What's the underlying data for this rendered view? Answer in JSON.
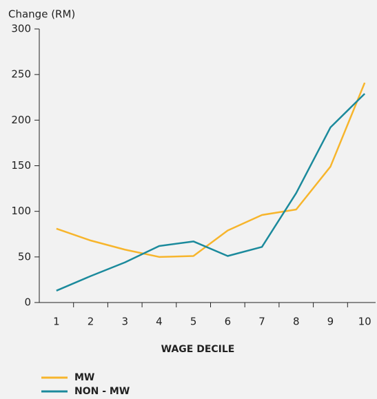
{
  "chart_data": {
    "type": "line",
    "y_label": "Change (RM)",
    "x_label": "WAGE DECILE",
    "categories": [
      "1",
      "2",
      "3",
      "4",
      "5",
      "6",
      "7",
      "8",
      "9",
      "10"
    ],
    "series": [
      {
        "name": "MW",
        "color": "#f7b52c",
        "values": [
          81,
          68,
          58,
          50,
          51,
          79,
          96,
          102,
          149,
          241
        ]
      },
      {
        "name": "NON - MW",
        "color": "#1b8a9c",
        "values": [
          13,
          29,
          44,
          62,
          67,
          51,
          61,
          120,
          192,
          229
        ]
      }
    ],
    "ylim": [
      0,
      300
    ],
    "yticks": [
      0,
      50,
      100,
      150,
      200,
      250,
      300
    ],
    "grid": false
  }
}
